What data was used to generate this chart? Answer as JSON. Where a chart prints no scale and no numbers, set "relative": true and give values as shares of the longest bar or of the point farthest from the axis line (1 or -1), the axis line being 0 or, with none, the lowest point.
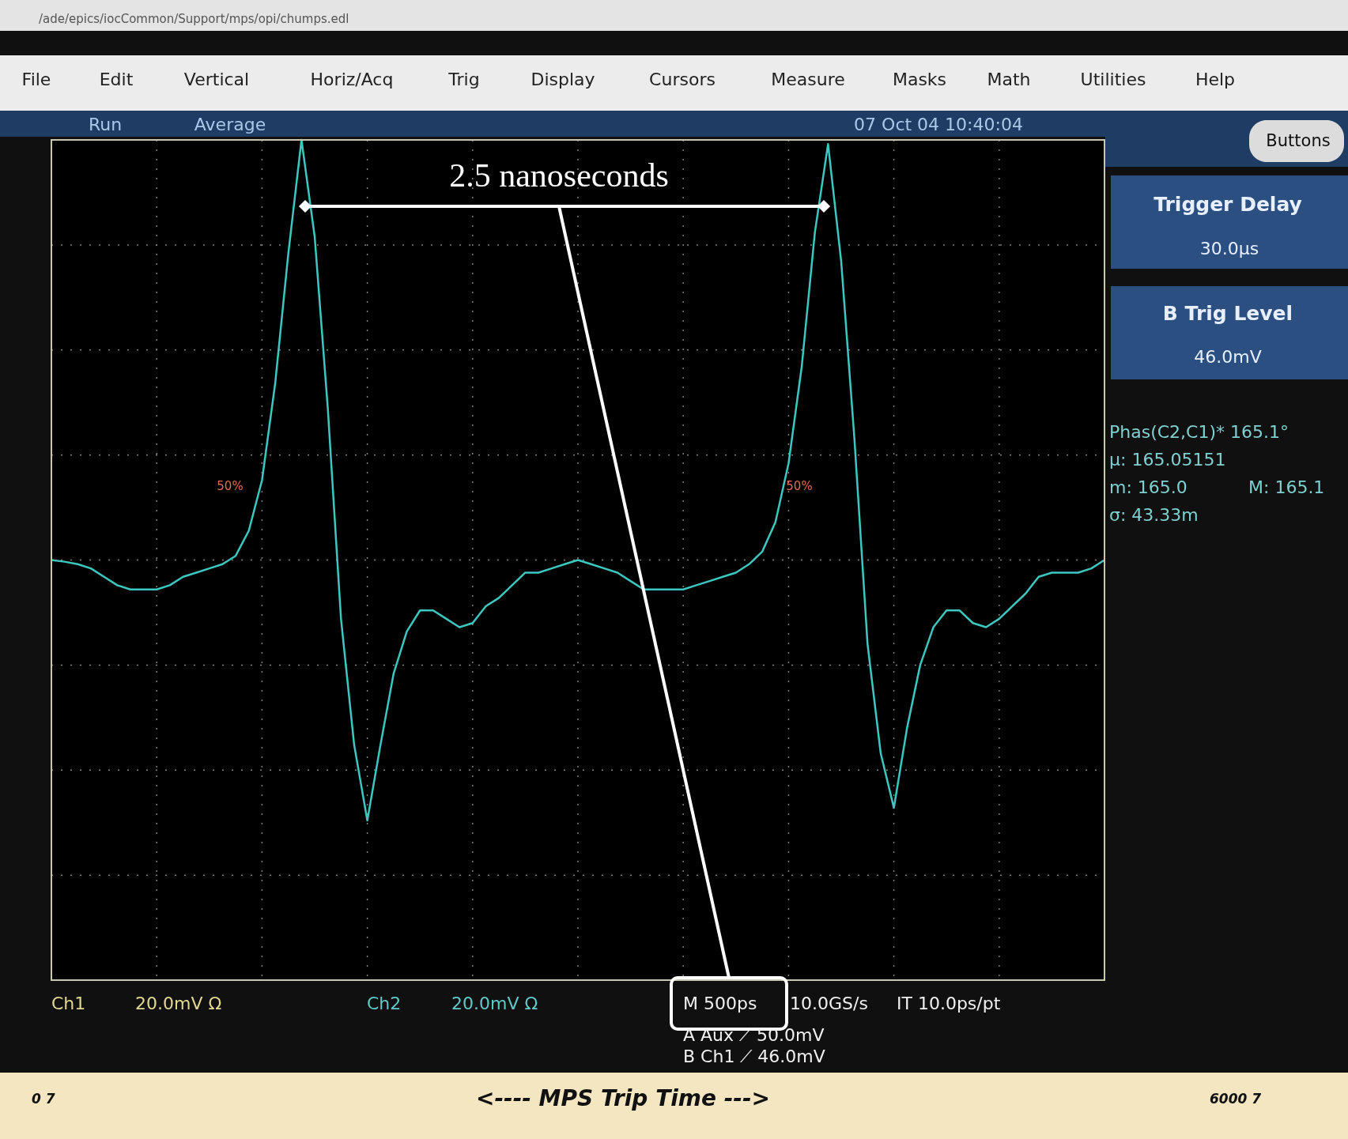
{
  "chart_data": {
    "type": "line",
    "relative": true,
    "grid": true,
    "marker": "none",
    "line_style": "solid",
    "categories": [
      null,
      null,
      null,
      null,
      null,
      null,
      null,
      null,
      null,
      null,
      null,
      null,
      null,
      null,
      null,
      null,
      null,
      null,
      null,
      null,
      null,
      null,
      null,
      null,
      null,
      null,
      null,
      null,
      null,
      null,
      null,
      null,
      null,
      null,
      null,
      null,
      null,
      null,
      null,
      null,
      null,
      null,
      null,
      null,
      null,
      null,
      null,
      null,
      null,
      null,
      null,
      null,
      null,
      null,
      null,
      null,
      null,
      null,
      null,
      null,
      null,
      null,
      null,
      null,
      null,
      null,
      null,
      null,
      null,
      null,
      null,
      null,
      null,
      null,
      null,
      null,
      null,
      null,
      null,
      null,
      null
    ],
    "series": [
      {
        "color": "#3cc8c0",
        "values": [
          0,
          -0.004,
          -0.01,
          -0.02,
          -0.04,
          -0.06,
          -0.07,
          -0.07,
          -0.07,
          -0.06,
          -0.04,
          -0.03,
          -0.02,
          -0.01,
          0.01,
          0.07,
          0.19,
          0.42,
          0.73,
          1.0,
          0.77,
          0.36,
          -0.14,
          -0.44,
          -0.62,
          -0.44,
          -0.27,
          -0.17,
          -0.12,
          -0.12,
          -0.14,
          -0.16,
          -0.15,
          -0.11,
          -0.09,
          -0.06,
          -0.03,
          -0.03,
          -0.02,
          -0.01,
          0,
          -0.01,
          -0.02,
          -0.03,
          -0.05,
          -0.07,
          -0.07,
          -0.07,
          -0.07,
          -0.06,
          -0.05,
          -0.04,
          -0.03,
          -0.01,
          0.02,
          0.09,
          0.23,
          0.46,
          0.78,
          0.99,
          0.71,
          0.29,
          -0.2,
          -0.46,
          -0.59,
          -0.4,
          -0.25,
          -0.16,
          -0.12,
          -0.12,
          -0.15,
          -0.16,
          -0.14,
          -0.11,
          -0.08,
          -0.04,
          -0.03,
          -0.03,
          -0.03,
          -0.02,
          0
        ]
      }
    ],
    "annotations": [
      "/ade/epics/iocCommon/Support/mps/opi/chumps.edl",
      "File",
      "Edit",
      "Vertical",
      "Horiz/Acq",
      "Trig",
      "Display",
      "Cursors",
      "Measure",
      "Masks",
      "Math",
      "Utilities",
      "Help",
      "Run",
      "Average",
      "07 Oct 04 10:40:04",
      "Buttons",
      "Trigger Delay",
      "30.0µs",
      "B Trig Level",
      "46.0mV",
      "Phas(C2,C1)* 165.1°",
      "µ: 165.05151",
      "m: 165.0",
      "M: 165.1",
      "σ: 43.33m",
      "Ch1",
      "20.0mV Ω",
      "Ch2",
      "20.0mV Ω",
      "M 500ps",
      "10.0GS/s",
      "IT 10.0ps/pt",
      "A Aux ⟋ 50.0mV",
      "B Ch1 ⟋ 46.0mV",
      "0 7",
      "<---- MPS Trip Time --->",
      "6000 7",
      "50%",
      "50%",
      "2.5 nanoseconds"
    ]
  }
}
